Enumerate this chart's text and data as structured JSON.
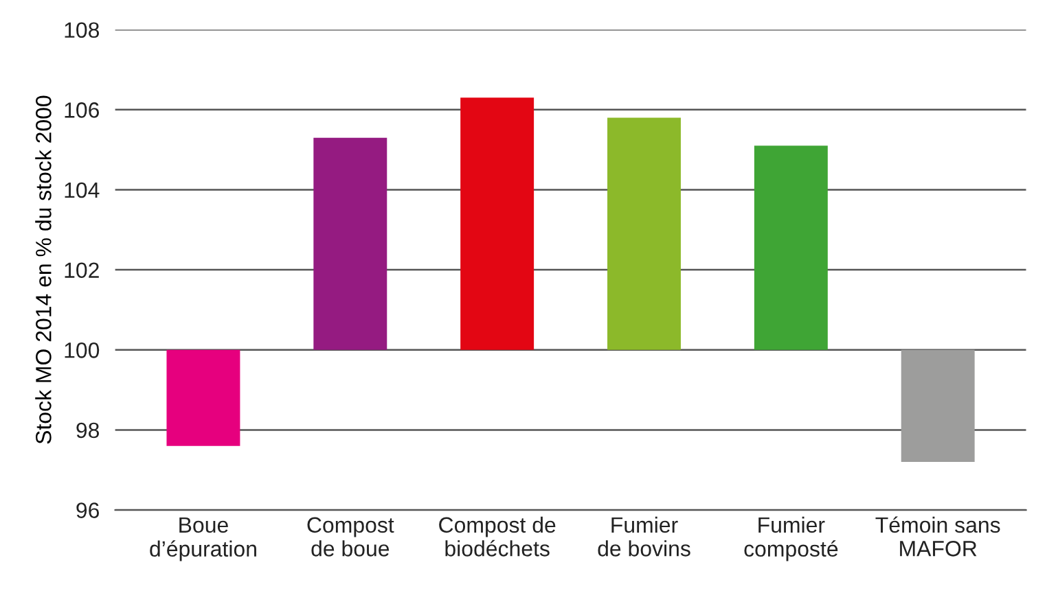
{
  "chart_data": {
    "type": "bar",
    "ylabel": "Stock MO 2014 en % du stock 2000",
    "categories": [
      "Boue\nd’épuration",
      "Compost\nde boue",
      "Compost de\nbiodéchets",
      "Fumier\nde bovins",
      "Fumier\ncomposté",
      "Témoin sans\nMAFOR"
    ],
    "base": [
      100,
      100,
      100,
      100,
      100,
      100
    ],
    "values": [
      -2.4,
      5.3,
      6.3,
      5.8,
      5.1,
      -2.8
    ],
    "colors": [
      "#e6007e",
      "#951b81",
      "#e30613",
      "#8cb92a",
      "#3fa535",
      "#9d9d9c"
    ],
    "ylim": [
      96,
      108
    ],
    "yticks": [
      96,
      98,
      100,
      102,
      104,
      106,
      108
    ],
    "grid": "y"
  }
}
